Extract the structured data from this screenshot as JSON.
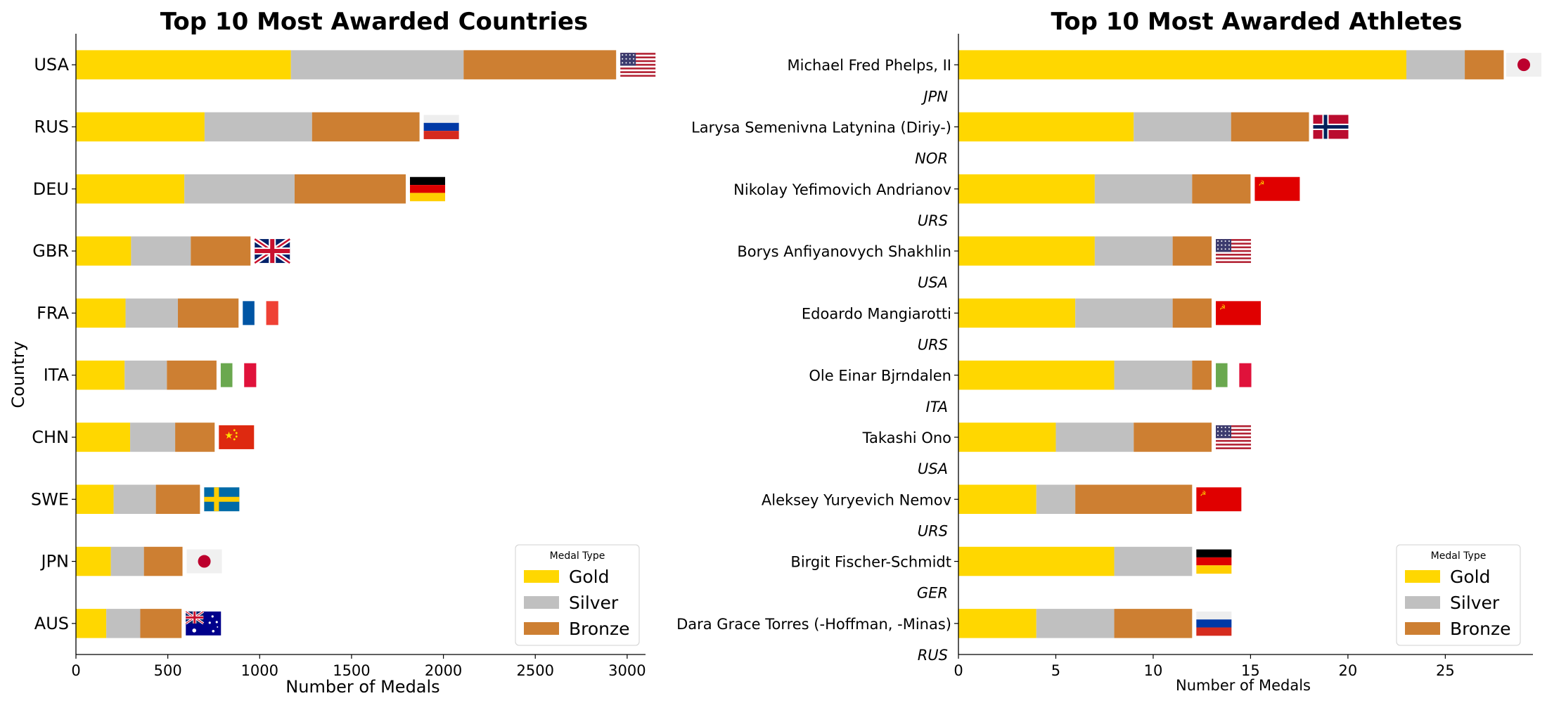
{
  "colors": {
    "gold": "#FFD700",
    "silver": "#C0C0C0",
    "bronze": "#CD7F32"
  },
  "chart_data": [
    {
      "type": "bar",
      "orientation": "horizontal",
      "stacked": true,
      "title": "Top 10 Most Awarded Countries",
      "xlabel": "Number of Medals",
      "ylabel": "Country",
      "xlim": [
        0,
        3100
      ],
      "xticks": [
        0,
        500,
        1000,
        1500,
        2000,
        2500,
        3000
      ],
      "legend": {
        "title": "Medal Type",
        "position": "lower-right",
        "entries": [
          "Gold",
          "Silver",
          "Bronze"
        ]
      },
      "categories": [
        "USA",
        "RUS",
        "DEU",
        "GBR",
        "FRA",
        "ITA",
        "CHN",
        "SWE",
        "JPN",
        "AUS"
      ],
      "flags": [
        "usa-flag",
        "rus-flag",
        "deu-flag",
        "gbr-flag",
        "fra-flag",
        "ita-flag",
        "chn-flag",
        "swe-flag",
        "jpn-flag",
        "aus-flag"
      ],
      "series": [
        {
          "name": "Gold",
          "values": [
            1170,
            700,
            590,
            300,
            270,
            265,
            295,
            205,
            190,
            165
          ]
        },
        {
          "name": "Silver",
          "values": [
            940,
            585,
            600,
            325,
            285,
            230,
            245,
            230,
            180,
            185
          ]
        },
        {
          "name": "Bronze",
          "values": [
            830,
            585,
            605,
            325,
            330,
            270,
            215,
            240,
            210,
            225
          ]
        }
      ]
    },
    {
      "type": "bar",
      "orientation": "horizontal",
      "stacked": true,
      "title": "Top 10 Most Awarded Athletes",
      "xlabel": "Number of Medals",
      "ylabel": "",
      "xlim": [
        0,
        29.5
      ],
      "xticks": [
        0,
        5,
        10,
        15,
        20,
        25
      ],
      "legend": {
        "title": "Medal Type",
        "position": "lower-right",
        "entries": [
          "Gold",
          "Silver",
          "Bronze"
        ]
      },
      "categories": [
        "Michael Fred Phelps, II",
        "Larysa Semenivna Latynina (Diriy-)",
        "Nikolay Yefimovich Andrianov",
        "Borys Anfiyanovych Shakhlin",
        "Edoardo Mangiarotti",
        "Ole Einar Bjrndalen",
        "Takashi Ono",
        "Aleksey Yuryevich Nemov",
        "Birgit Fischer-Schmidt",
        "Dara Grace Torres (-Hoffman, -Minas)"
      ],
      "country_codes": [
        "JPN",
        "NOR",
        "URS",
        "USA",
        "URS",
        "ITA",
        "USA",
        "URS",
        "GER",
        "RUS"
      ],
      "flags": [
        "jpn-flag",
        "nor-flag",
        "urs-flag",
        "usa-flag",
        "urs-flag",
        "ita-flag",
        "usa-flag",
        "urs-flag",
        "deu-flag",
        "rus-flag"
      ],
      "series": [
        {
          "name": "Gold",
          "values": [
            23,
            9,
            7,
            7,
            6,
            8,
            5,
            4,
            8,
            4
          ]
        },
        {
          "name": "Silver",
          "values": [
            3,
            5,
            5,
            4,
            5,
            4,
            4,
            2,
            4,
            4
          ]
        },
        {
          "name": "Bronze",
          "values": [
            2,
            4,
            3,
            2,
            2,
            1,
            4,
            6,
            0,
            4
          ]
        }
      ]
    }
  ]
}
